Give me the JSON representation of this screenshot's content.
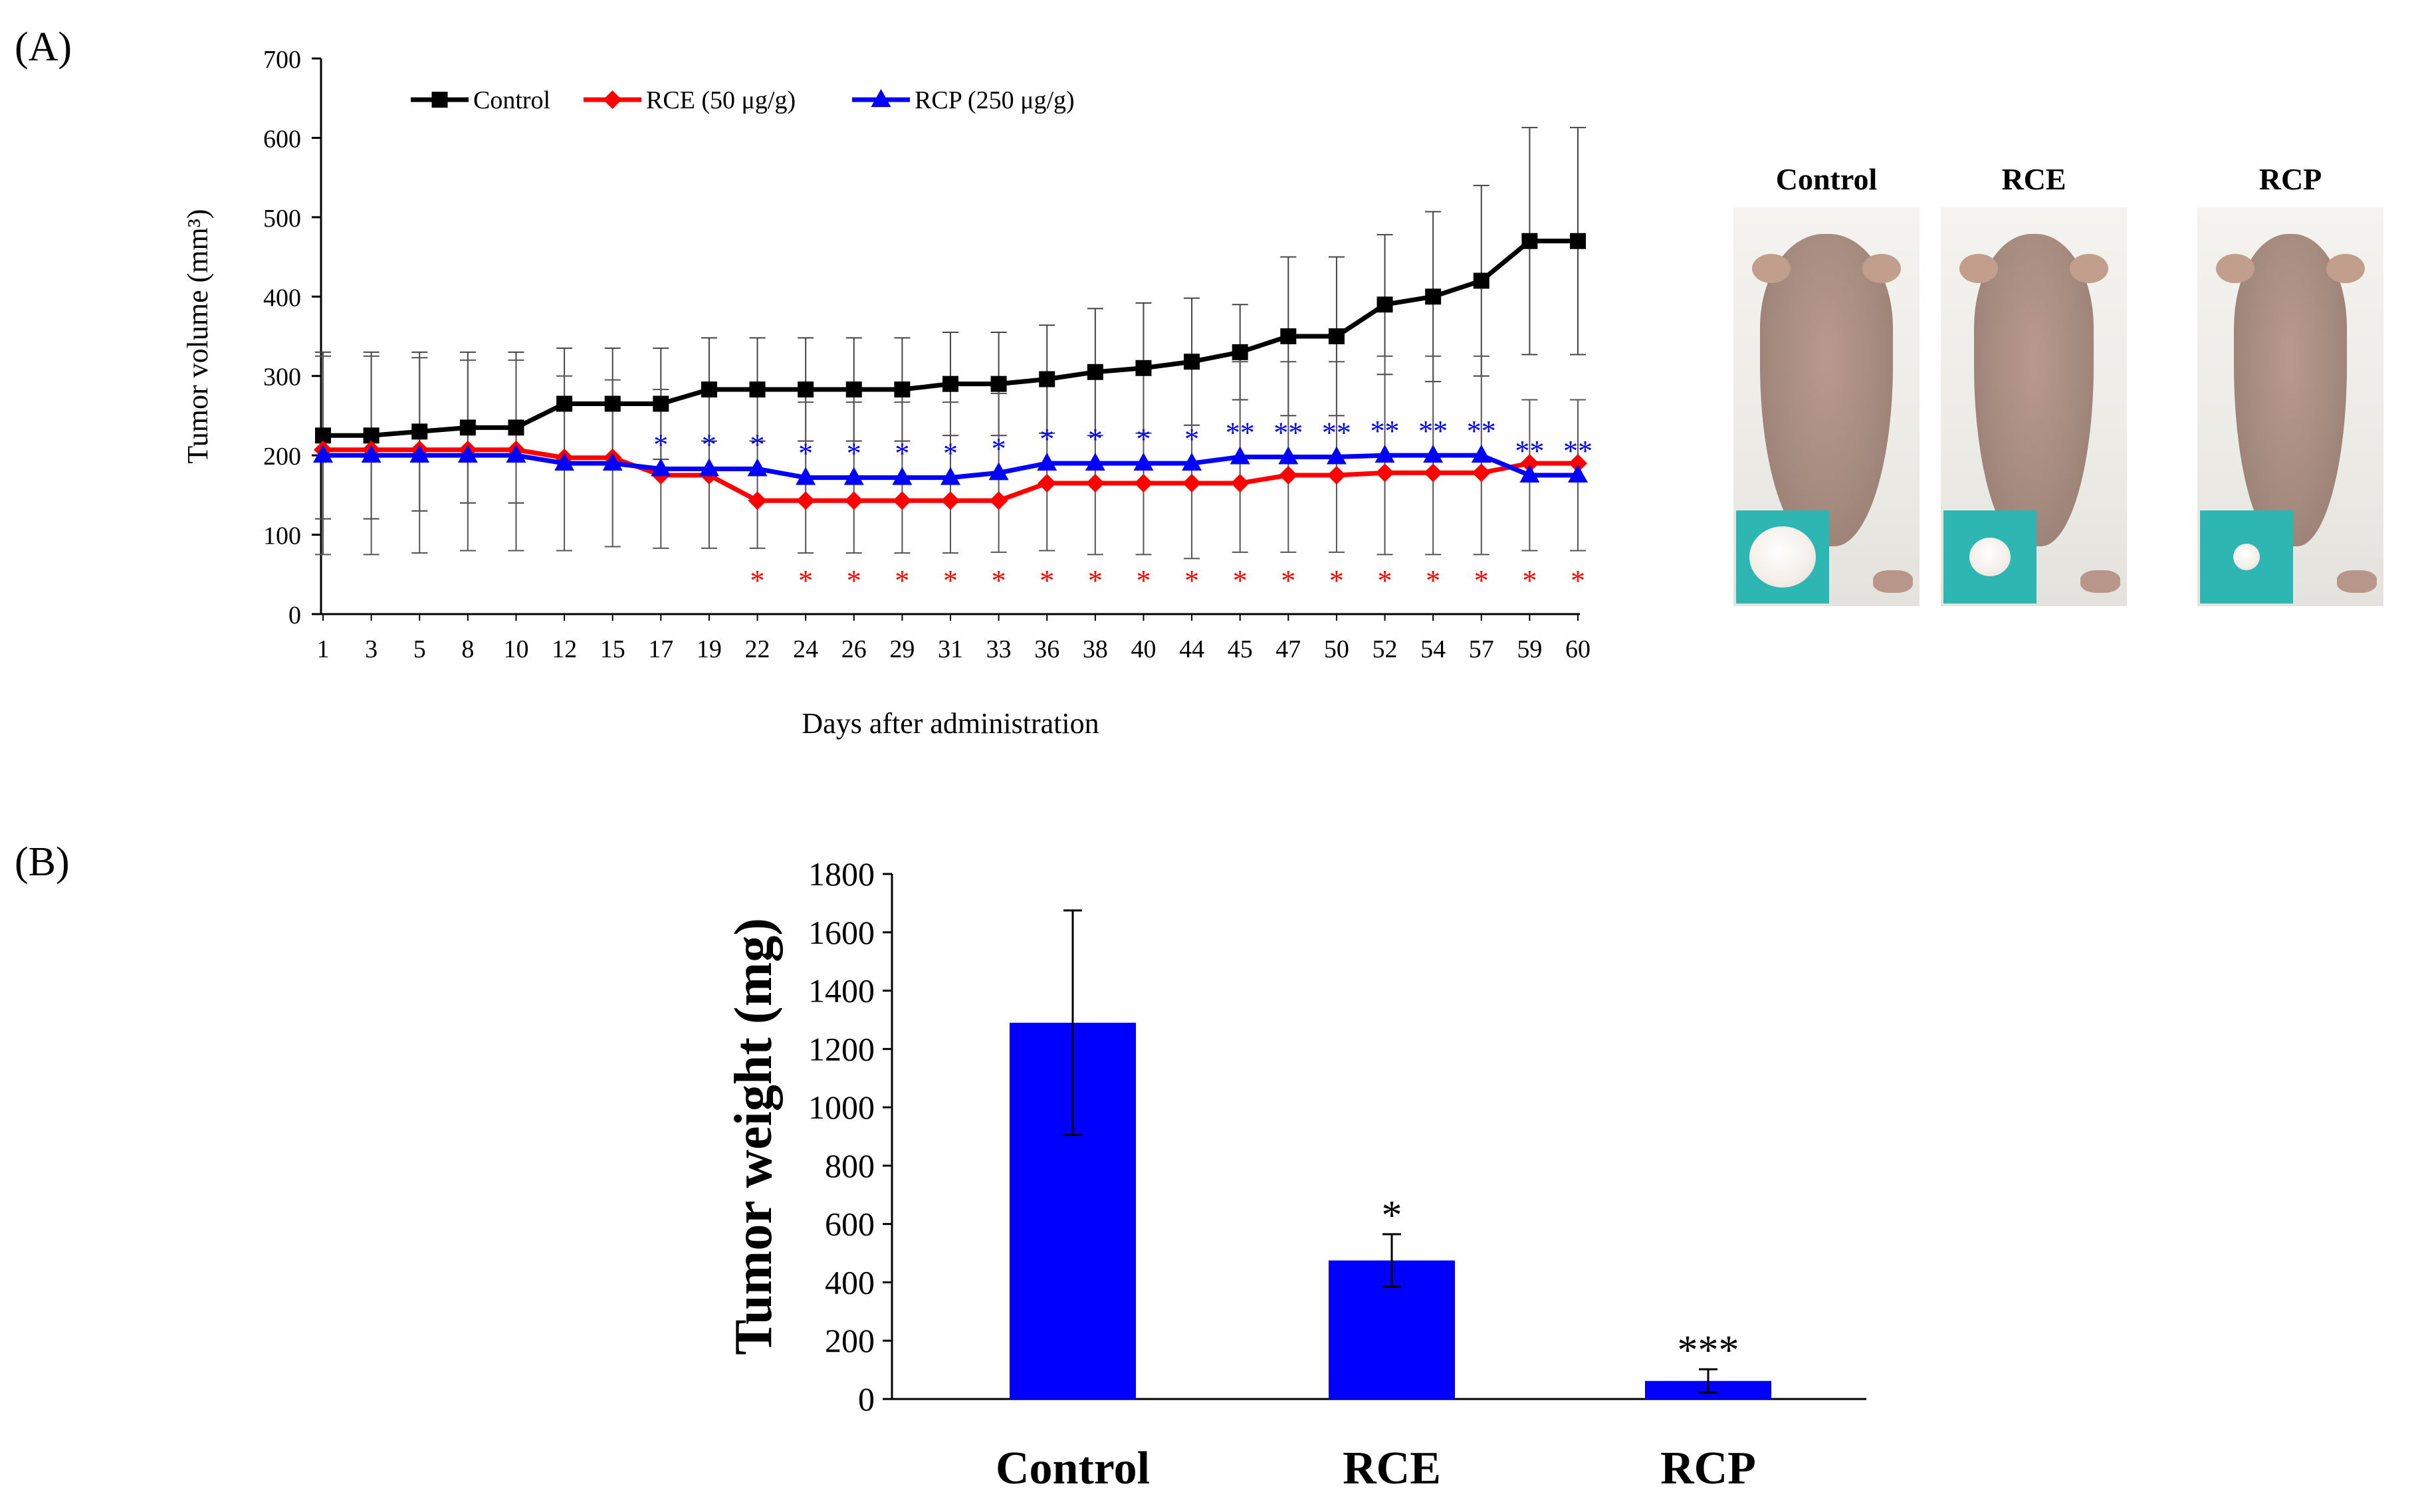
{
  "panel_labels": {
    "a": "(A)",
    "b": "(B)"
  },
  "chart_data": [
    {
      "type": "line",
      "title": "",
      "xlabel": "Days after administration",
      "ylabel": "Tumor volume (mm³)",
      "ylim": [
        0,
        700
      ],
      "yticks": [
        0,
        100,
        200,
        300,
        400,
        500,
        600,
        700
      ],
      "categories": [
        "1",
        "3",
        "5",
        "8",
        "10",
        "12",
        "15",
        "17",
        "19",
        "22",
        "24",
        "26",
        "29",
        "31",
        "33",
        "36",
        "38",
        "40",
        "44",
        "45",
        "47",
        "50",
        "52",
        "54",
        "57",
        "59",
        "60"
      ],
      "series": [
        {
          "name": "Control",
          "color": "#000000",
          "marker": "square",
          "values": [
            225,
            225,
            230,
            235,
            235,
            265,
            265,
            265,
            283,
            283,
            283,
            283,
            283,
            290,
            290,
            296,
            305,
            310,
            318,
            330,
            350,
            350,
            390,
            400,
            420,
            470,
            470
          ],
          "errors": [
            105,
            105,
            100,
            95,
            95,
            70,
            70,
            70,
            65,
            65,
            65,
            65,
            65,
            65,
            65,
            68,
            80,
            82,
            80,
            60,
            100,
            100,
            88,
            107,
            120,
            143,
            143
          ]
        },
        {
          "name": "RCE  (50 μg/g)",
          "color": "#ff0000",
          "marker": "diamond",
          "values": [
            207,
            207,
            207,
            207,
            207,
            197,
            197,
            175,
            175,
            143,
            143,
            143,
            143,
            143,
            143,
            165,
            165,
            165,
            165,
            165,
            175,
            175,
            178,
            178,
            178,
            190,
            190
          ],
          "errors": [
            0,
            0,
            0,
            0,
            0,
            0,
            0,
            0,
            0,
            0,
            0,
            0,
            0,
            0,
            0,
            0,
            0,
            0,
            0,
            0,
            0,
            0,
            0,
            0,
            0,
            0,
            0
          ],
          "significance": [
            "",
            "",
            "",
            "",
            "",
            "",
            "",
            "",
            "",
            "*",
            "*",
            "*",
            "*",
            "*",
            "*",
            "*",
            "*",
            "*",
            "*",
            "*",
            "*",
            "*",
            "*",
            "*",
            "*",
            "*",
            "*"
          ]
        },
        {
          "name": "RCP (250 μg/g)",
          "color": "#0000ff",
          "marker": "triangle",
          "values": [
            200,
            200,
            200,
            200,
            200,
            190,
            190,
            183,
            183,
            183,
            172,
            172,
            172,
            172,
            178,
            190,
            190,
            190,
            190,
            198,
            198,
            198,
            200,
            200,
            200,
            175,
            175
          ],
          "errors": [
            125,
            125,
            123,
            120,
            120,
            110,
            105,
            100,
            100,
            100,
            95,
            95,
            95,
            95,
            100,
            110,
            115,
            115,
            120,
            120,
            120,
            120,
            125,
            125,
            125,
            95,
            95
          ],
          "significance": [
            "",
            "",
            "",
            "",
            "",
            "",
            "",
            "*",
            "*",
            "*",
            "*",
            "*",
            "*",
            "*",
            "*",
            "*",
            "*",
            "*",
            "*",
            "**",
            "**",
            "**",
            "**",
            "**",
            "**",
            "**",
            "**"
          ]
        }
      ]
    },
    {
      "type": "bar",
      "title": "",
      "xlabel": "",
      "ylabel": "Tumor weight (mg)",
      "ylim": [
        0,
        1800
      ],
      "yticks": [
        0,
        200,
        400,
        600,
        800,
        1000,
        1200,
        1400,
        1600,
        1800
      ],
      "categories": [
        "Control",
        "RCE",
        "RCP"
      ],
      "values": [
        1290,
        475,
        62
      ],
      "errors": [
        385,
        90,
        40
      ],
      "significance": [
        "",
        "*",
        "***"
      ],
      "color": "#0000ff"
    }
  ],
  "photos": {
    "items": [
      {
        "label": "Control",
        "tumor": "large"
      },
      {
        "label": "RCE",
        "tumor": "medium"
      },
      {
        "label": "RCP",
        "tumor": "small"
      }
    ]
  }
}
